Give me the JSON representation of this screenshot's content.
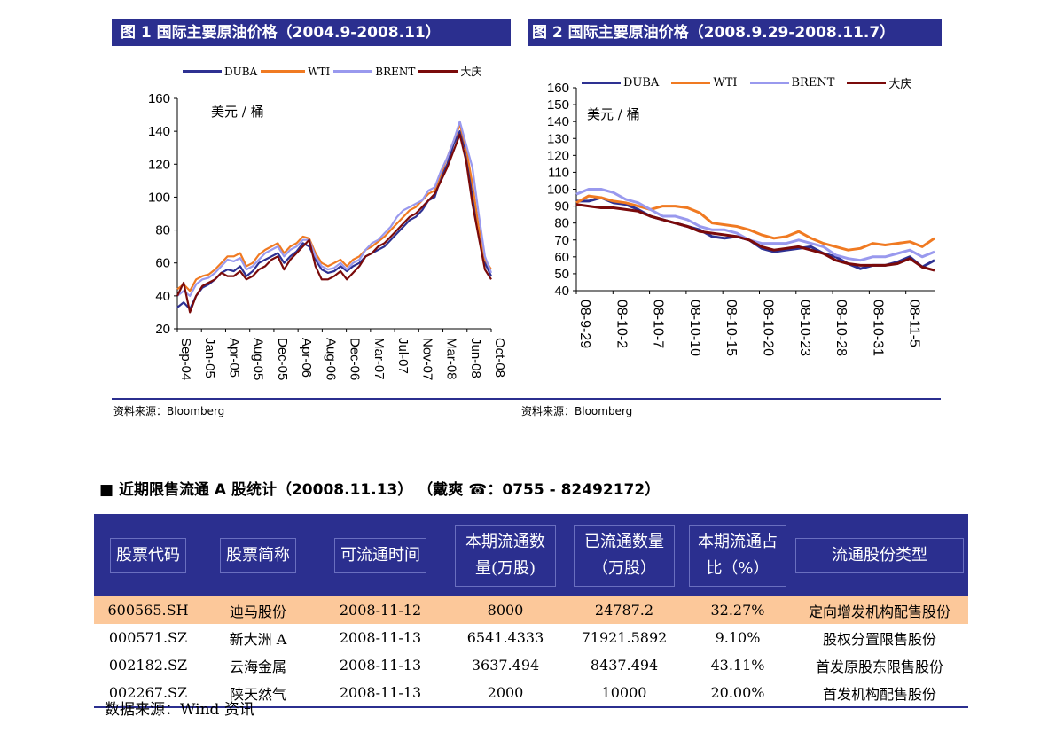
{
  "figures": [
    {
      "header": "图 1  国际主要原油价格（2004.9-2008.11）",
      "source": "资料来源：Bloomberg",
      "unit_note": "美元 / 桶",
      "legend": [
        "DUBA",
        "WTI",
        "BRENT",
        "大庆"
      ]
    },
    {
      "header": "图 2  国际主要原油价格（2008.9.29-2008.11.7）",
      "source": "资料来源：Bloomberg",
      "unit_note": "美元 / 桶",
      "legend": [
        "DUBA",
        "WTI",
        "BRENT",
        "大庆"
      ]
    }
  ],
  "colors": {
    "header_bg": "#2b2f8f",
    "duba": "#2e3192",
    "wti": "#f07a22",
    "brent": "#9999ee",
    "daqing": "#7a0a0a",
    "highlight_row": "#fcc89a"
  },
  "chart_data": [
    {
      "type": "line",
      "ylim": [
        20,
        160
      ],
      "yticks": [
        20,
        40,
        60,
        80,
        100,
        120,
        140,
        160
      ],
      "xticks": [
        "Sep-04",
        "Jan-05",
        "Apr-05",
        "Aug-05",
        "Dec-05",
        "Apr-06",
        "Aug-06",
        "Dec-06",
        "Mar-07",
        "Jul-07",
        "Nov-07",
        "Mar-08",
        "Jun-08",
        "Oct-08"
      ],
      "x": [
        0,
        1,
        2,
        3,
        4,
        5,
        6,
        7,
        8,
        9,
        10,
        11,
        12,
        13,
        14,
        15,
        16,
        17,
        18,
        19,
        20,
        21,
        22,
        23,
        24,
        25,
        26,
        27,
        28,
        29,
        30,
        31,
        32,
        33,
        34,
        35,
        36,
        37,
        38,
        39,
        40,
        41,
        42,
        43,
        44,
        45,
        46,
        47,
        48,
        49,
        50
      ],
      "series": [
        {
          "name": "DUBA",
          "values": [
            33,
            36,
            32,
            40,
            45,
            47,
            50,
            54,
            56,
            55,
            58,
            52,
            55,
            60,
            62,
            64,
            66,
            60,
            64,
            67,
            72,
            70,
            62,
            56,
            54,
            55,
            58,
            55,
            58,
            60,
            64,
            66,
            68,
            70,
            74,
            78,
            82,
            86,
            88,
            92,
            98,
            100,
            112,
            120,
            132,
            140,
            128,
            100,
            80,
            60,
            52
          ]
        },
        {
          "name": "WTI",
          "values": [
            44,
            47,
            43,
            50,
            52,
            53,
            56,
            60,
            64,
            64,
            66,
            58,
            60,
            65,
            68,
            70,
            72,
            66,
            70,
            72,
            76,
            75,
            66,
            60,
            58,
            60,
            62,
            58,
            62,
            64,
            68,
            70,
            73,
            76,
            80,
            84,
            88,
            92,
            94,
            98,
            102,
            104,
            114,
            124,
            134,
            144,
            130,
            108,
            82,
            62,
            56
          ]
        },
        {
          "name": "BRENT",
          "values": [
            40,
            43,
            40,
            47,
            50,
            51,
            54,
            58,
            62,
            61,
            63,
            56,
            58,
            62,
            66,
            68,
            70,
            64,
            68,
            70,
            74,
            74,
            64,
            58,
            56,
            57,
            60,
            56,
            60,
            62,
            68,
            72,
            74,
            78,
            82,
            88,
            92,
            94,
            96,
            98,
            104,
            106,
            116,
            124,
            134,
            146,
            132,
            118,
            90,
            64,
            54
          ]
        },
        {
          "name": "大庆",
          "values": [
            40,
            48,
            30,
            40,
            46,
            48,
            50,
            54,
            52,
            52,
            55,
            50,
            52,
            56,
            58,
            62,
            64,
            56,
            62,
            66,
            70,
            74,
            58,
            50,
            50,
            52,
            55,
            50,
            54,
            58,
            64,
            66,
            70,
            72,
            76,
            80,
            84,
            88,
            90,
            94,
            98,
            102,
            110,
            118,
            128,
            138,
            122,
            96,
            76,
            56,
            50
          ]
        }
      ]
    },
    {
      "type": "line",
      "ylim": [
        40,
        160
      ],
      "yticks": [
        40,
        50,
        60,
        70,
        80,
        90,
        100,
        110,
        120,
        130,
        140,
        150,
        160
      ],
      "xticks": [
        "08-9-29",
        "08-10-2",
        "08-10-7",
        "08-10-10",
        "08-10-15",
        "08-10-20",
        "08-10-23",
        "08-10-28",
        "08-10-31",
        "08-11-5"
      ],
      "x": [
        0,
        1,
        2,
        3,
        4,
        5,
        6,
        7,
        8,
        9,
        10,
        11,
        12,
        13,
        14,
        15,
        16,
        17,
        18,
        19,
        20,
        21,
        22,
        23,
        24,
        25,
        26,
        27,
        28,
        29
      ],
      "series": [
        {
          "name": "DUBA",
          "values": [
            93,
            93,
            95,
            92,
            91,
            88,
            84,
            82,
            80,
            78,
            76,
            72,
            71,
            72,
            70,
            65,
            63,
            64,
            65,
            66,
            62,
            60,
            56,
            53,
            55,
            55,
            57,
            60,
            54,
            58
          ]
        },
        {
          "name": "WTI",
          "values": [
            92,
            96,
            95,
            93,
            92,
            90,
            88,
            90,
            90,
            89,
            86,
            80,
            79,
            78,
            76,
            73,
            71,
            72,
            75,
            71,
            68,
            66,
            64,
            65,
            68,
            67,
            68,
            69,
            66,
            71
          ]
        },
        {
          "name": "BRENT",
          "values": [
            97,
            100,
            100,
            98,
            94,
            92,
            88,
            84,
            84,
            82,
            78,
            76,
            76,
            74,
            70,
            68,
            68,
            68,
            70,
            68,
            66,
            61,
            59,
            58,
            60,
            60,
            62,
            64,
            60,
            63
          ]
        },
        {
          "name": "大庆",
          "values": [
            91,
            90,
            89,
            89,
            88,
            87,
            84,
            82,
            80,
            78,
            75,
            74,
            73,
            72,
            70,
            66,
            64,
            65,
            66,
            64,
            62,
            58,
            56,
            55,
            55,
            55,
            56,
            59,
            54,
            52
          ]
        }
      ]
    }
  ],
  "section": {
    "title": "■  近期限售流通 A 股统计（20008.11.13）    （戴爽    ☎：0755 - 82492172）"
  },
  "table": {
    "headers": [
      "股票代码",
      "股票简称",
      "可流通时间",
      "本期流通数量(万股)",
      "已流通数量（万股）",
      "本期流通占比（%）",
      "流通股份类型"
    ],
    "rows": [
      [
        "600565.SH",
        "迪马股份",
        "2008-11-12",
        "8000",
        "24787.2",
        "32.27%",
        "定向增发机构配售股份"
      ],
      [
        "000571.SZ",
        "新大洲 A",
        "2008-11-13",
        "6541.4333",
        "71921.5892",
        "9.10%",
        "股权分置限售股份"
      ],
      [
        "002182.SZ",
        "云海金属",
        "2008-11-13",
        "3637.494",
        "8437.494",
        "43.11%",
        "首发原股东限售股份"
      ],
      [
        "002267.SZ",
        "陕天然气",
        "2008-11-13",
        "2000",
        "10000",
        "20.00%",
        "首发机构配售股份"
      ]
    ],
    "source": "数据来源：Wind 资讯"
  }
}
